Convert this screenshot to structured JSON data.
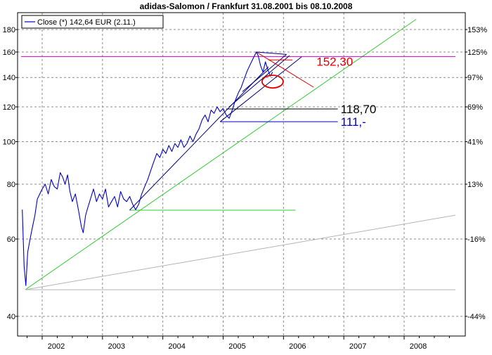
{
  "chart_data": {
    "type": "line",
    "title": "adidas-Salomon / Frankfurt 31.08.2001 bis 08.10.2008",
    "legend": "Close (*) 142,64 EUR (2.11.)",
    "legend_position": "top-left",
    "grid": true,
    "y_scale": "log",
    "x_range": [
      2001.65,
      2008.85
    ],
    "ylim": [
      36,
      190
    ],
    "y_ticks": [
      40,
      60,
      80,
      100,
      120,
      140,
      160,
      180
    ],
    "y_tick_labels": [
      "40",
      "60",
      "80",
      "100",
      "120",
      "140",
      "160",
      "180"
    ],
    "y2_ticks": [
      {
        "label": "153%",
        "value": 180
      },
      {
        "label": "125%",
        "value": 160
      },
      {
        "label": "97%",
        "value": 140
      },
      {
        "label": "69%",
        "value": 120
      },
      {
        "label": "41%",
        "value": 100
      },
      {
        "label": "13%",
        "value": 80
      },
      {
        "label": "-16%",
        "value": 60
      },
      {
        "label": "-44%",
        "value": 40
      }
    ],
    "x_ticks": [
      2002,
      2003,
      2004,
      2005,
      2006,
      2007,
      2008
    ],
    "x_tick_labels": [
      "2002",
      "2003",
      "2004",
      "2005",
      "2006",
      "2007",
      "2008"
    ],
    "x_minor_ticks": [
      2001.75,
      2002.25,
      2002.5,
      2002.75,
      2003.25,
      2003.5,
      2003.75,
      2004.25,
      2004.5,
      2004.75,
      2005.25,
      2005.5,
      2005.75,
      2006.25,
      2006.5,
      2006.75,
      2007.25,
      2007.5,
      2007.75,
      2008.25,
      2008.5,
      2008.75
    ],
    "series": [
      {
        "color": "#0000cc",
        "points": [
          [
            2001.67,
            70
          ],
          [
            2001.7,
            52
          ],
          [
            2001.73,
            47
          ],
          [
            2001.76,
            56
          ],
          [
            2001.8,
            60
          ],
          [
            2001.84,
            64
          ],
          [
            2001.88,
            68
          ],
          [
            2001.92,
            74
          ],
          [
            2001.96,
            76
          ],
          [
            2002.0,
            78
          ],
          [
            2002.05,
            80
          ],
          [
            2002.1,
            76
          ],
          [
            2002.15,
            82
          ],
          [
            2002.2,
            79
          ],
          [
            2002.25,
            78
          ],
          [
            2002.3,
            85
          ],
          [
            2002.34,
            83
          ],
          [
            2002.38,
            80
          ],
          [
            2002.42,
            84
          ],
          [
            2002.46,
            77
          ],
          [
            2002.5,
            73
          ],
          [
            2002.55,
            76
          ],
          [
            2002.6,
            70
          ],
          [
            2002.65,
            64
          ],
          [
            2002.68,
            62
          ],
          [
            2002.72,
            68
          ],
          [
            2002.76,
            71
          ],
          [
            2002.8,
            74
          ],
          [
            2002.85,
            78
          ],
          [
            2002.9,
            73
          ],
          [
            2002.95,
            76
          ],
          [
            2003.0,
            74
          ],
          [
            2003.05,
            78
          ],
          [
            2003.1,
            71
          ],
          [
            2003.15,
            73
          ],
          [
            2003.2,
            75
          ],
          [
            2003.25,
            71
          ],
          [
            2003.3,
            77
          ],
          [
            2003.35,
            74
          ],
          [
            2003.4,
            73
          ],
          [
            2003.45,
            75
          ],
          [
            2003.5,
            72
          ],
          [
            2003.55,
            70
          ],
          [
            2003.6,
            72
          ],
          [
            2003.65,
            76
          ],
          [
            2003.7,
            79
          ],
          [
            2003.75,
            82
          ],
          [
            2003.8,
            86
          ],
          [
            2003.85,
            90
          ],
          [
            2003.9,
            94
          ],
          [
            2003.95,
            92
          ],
          [
            2004.0,
            96
          ],
          [
            2004.05,
            94
          ],
          [
            2004.1,
            98
          ],
          [
            2004.15,
            95
          ],
          [
            2004.2,
            99
          ],
          [
            2004.25,
            97
          ],
          [
            2004.3,
            101
          ],
          [
            2004.35,
            97
          ],
          [
            2004.4,
            99
          ],
          [
            2004.45,
            103
          ],
          [
            2004.5,
            100
          ],
          [
            2004.55,
            104
          ],
          [
            2004.6,
            107
          ],
          [
            2004.65,
            112
          ],
          [
            2004.7,
            115
          ],
          [
            2004.75,
            111
          ],
          [
            2004.8,
            118
          ],
          [
            2004.85,
            116
          ],
          [
            2004.9,
            120
          ],
          [
            2004.95,
            117
          ],
          [
            2005.0,
            119
          ],
          [
            2005.05,
            115
          ],
          [
            2005.1,
            113
          ],
          [
            2005.15,
            118
          ],
          [
            2005.2,
            124
          ],
          [
            2005.25,
            129
          ],
          [
            2005.3,
            133
          ],
          [
            2005.35,
            139
          ],
          [
            2005.4,
            145
          ],
          [
            2005.45,
            150
          ],
          [
            2005.5,
            155
          ],
          [
            2005.55,
            160
          ],
          [
            2005.58,
            157
          ],
          [
            2005.62,
            149
          ],
          [
            2005.66,
            144
          ],
          [
            2005.7,
            152
          ],
          [
            2005.74,
            146
          ],
          [
            2005.78,
            141
          ],
          [
            2005.82,
            144
          ]
        ]
      }
    ],
    "annotations": [
      {
        "text": "152,30",
        "color": "#e00000"
      },
      {
        "text": "118,70",
        "color": "#000000"
      },
      {
        "text": "111,-",
        "color": "#0000cc"
      }
    ],
    "lines": [
      {
        "from": [
          2001.72,
          46
        ],
        "to": [
          2008.2,
          190
        ],
        "color": "#33cc33"
      },
      {
        "from": [
          2001.72,
          46
        ],
        "to": [
          2008.85,
          68
        ],
        "color": "#b4b4b4"
      },
      {
        "from": [
          2001.72,
          46
        ],
        "to": [
          2008.85,
          46
        ],
        "color": "#b4b4b4"
      },
      {
        "from": [
          2001.65,
          156.3
        ],
        "to": [
          2008.85,
          156.3
        ],
        "color": "#cc00cc"
      },
      {
        "from": [
          2003.45,
          69.8
        ],
        "to": [
          2006.2,
          69.8
        ],
        "color": "#33cc33"
      },
      {
        "from": [
          2003.45,
          69.8
        ],
        "to": [
          2005.75,
          148
        ],
        "color": "#00007a"
      },
      {
        "from": [
          2004.95,
          111
        ],
        "to": [
          2006.3,
          156
        ],
        "color": "#00007a"
      },
      {
        "from": [
          2004.95,
          111
        ],
        "to": [
          2006.9,
          111
        ],
        "color": "#0000cc"
      },
      {
        "from": [
          2005.05,
          118.7
        ],
        "to": [
          2006.9,
          118.7
        ],
        "color": "#000000"
      },
      {
        "from": [
          2005.1,
          120
        ],
        "to": [
          2006.1,
          157
        ],
        "color": "#00007a"
      },
      {
        "from": [
          2005.32,
          130
        ],
        "to": [
          2006.05,
          158
        ],
        "color": "#00007a"
      },
      {
        "from": [
          2005.55,
          160
        ],
        "to": [
          2006.05,
          158
        ],
        "color": "#00007a"
      },
      {
        "from": [
          2005.55,
          160
        ],
        "to": [
          2006.5,
          133
        ],
        "color": "#e00000"
      },
      {
        "from": [
          2005.75,
          153.5
        ],
        "to": [
          2006.15,
          153.5
        ],
        "color": "#e00000"
      }
    ],
    "ellipse": {
      "center": [
        2005.82,
        137
      ],
      "color": "#e00000"
    }
  }
}
